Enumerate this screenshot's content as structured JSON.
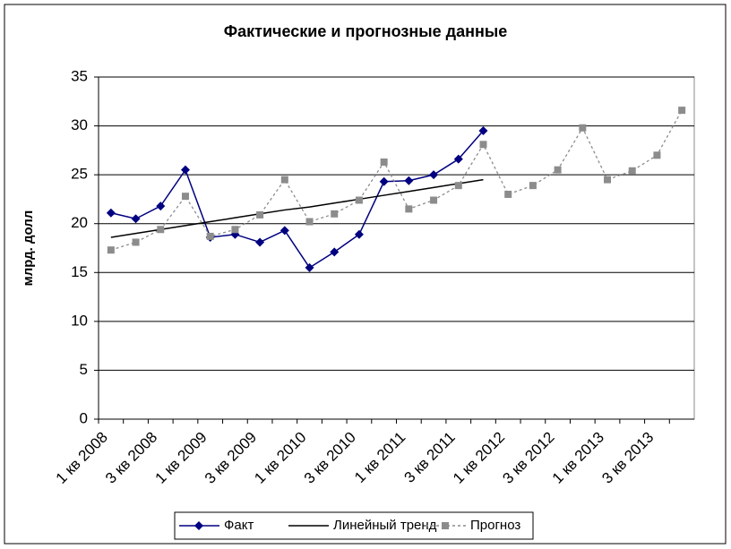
{
  "chart_data": {
    "type": "line",
    "title": "Фактические и прогнозные данные",
    "y_label": "млрд. долл",
    "categories": [
      "1 кв 2008",
      null,
      "3 кв 2008",
      null,
      "1 кв 2009",
      null,
      "3 кв 2009",
      null,
      "1 кв 2010",
      null,
      "3 кв 2010",
      null,
      "1 кв 2011",
      null,
      "3 кв 2011",
      null,
      "1 кв 2012",
      null,
      "3 кв 2012",
      null,
      "1 кв 2013",
      null,
      "3 кв 2013",
      null
    ],
    "series": [
      {
        "name": "Факт",
        "color": "#000080",
        "marker": "diamond",
        "dash": false,
        "values": [
          21.1,
          20.5,
          21.8,
          25.5,
          18.6,
          18.9,
          18.1,
          19.3,
          15.5,
          17.1,
          18.9,
          24.3,
          24.4,
          25.0,
          26.6,
          29.5,
          null,
          null,
          null,
          null,
          null,
          null,
          null,
          null
        ]
      },
      {
        "name": "Линейный тренд",
        "color": "#000000",
        "marker": "none",
        "dash": false,
        "values": [
          18.6,
          19.0,
          19.4,
          19.8,
          20.2,
          20.6,
          21.0,
          21.4,
          21.7,
          22.1,
          22.5,
          22.9,
          23.3,
          23.7,
          24.1,
          24.5,
          null,
          null,
          null,
          null,
          null,
          null,
          null,
          null
        ]
      },
      {
        "name": "Прогноз",
        "color": "#8c8c8c",
        "marker": "square",
        "dash": true,
        "values": [
          17.3,
          18.1,
          19.4,
          22.8,
          18.7,
          19.4,
          20.9,
          24.5,
          20.2,
          21.0,
          22.4,
          26.3,
          21.5,
          22.4,
          23.9,
          28.1,
          23.0,
          23.9,
          25.5,
          29.8,
          24.5,
          25.4,
          27.0,
          31.6
        ]
      }
    ],
    "ylim": [
      0,
      35
    ],
    "yticks": [
      0,
      5,
      10,
      15,
      20,
      25,
      30,
      35
    ],
    "grid": true,
    "legend": "bottom"
  }
}
